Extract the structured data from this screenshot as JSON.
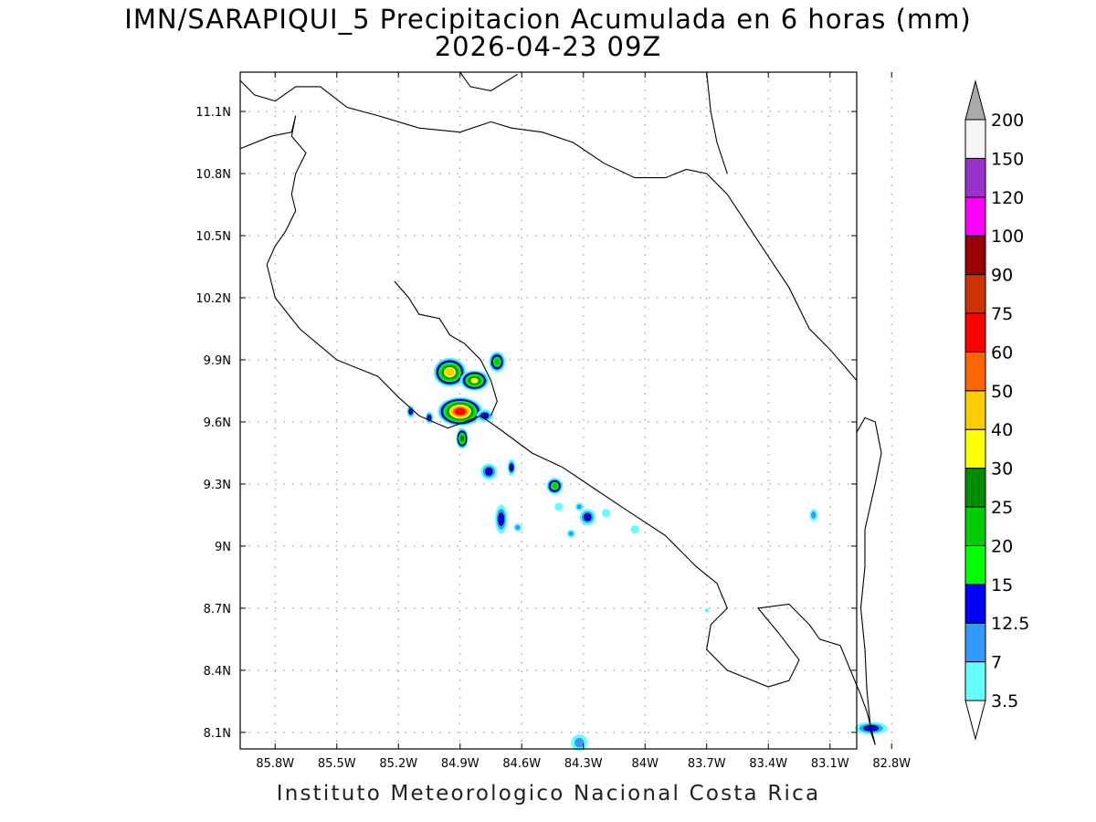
{
  "title": {
    "line1": "IMN/SARAPIQUI_5 Precipitacion Acumulada en 6 horas (mm)",
    "line2": "2026-04-23 09Z"
  },
  "footer": "Instituto Meteorologico Nacional Costa Rica",
  "axes": {
    "lon_ticks": [
      "85.8W",
      "85.5W",
      "85.2W",
      "84.9W",
      "84.6W",
      "84.3W",
      "84W",
      "83.7W",
      "83.4W",
      "83.1W",
      "82.8W"
    ],
    "lon_values": [
      -85.8,
      -85.5,
      -85.2,
      -84.9,
      -84.6,
      -84.3,
      -84.0,
      -83.7,
      -83.4,
      -83.1,
      -82.8
    ],
    "lat_ticks": [
      "11.1N",
      "10.8N",
      "10.5N",
      "10.2N",
      "9.9N",
      "9.6N",
      "9.3N",
      "9N",
      "8.7N",
      "8.4N",
      "8.1N"
    ],
    "lat_values": [
      11.1,
      10.8,
      10.5,
      10.2,
      9.9,
      9.6,
      9.3,
      9.0,
      8.7,
      8.4,
      8.1
    ],
    "lon_range": [
      -85.97,
      -82.97
    ],
    "lat_range": [
      8.02,
      11.29
    ],
    "grid": "dotted"
  },
  "colorbar": {
    "labels": [
      "3.5",
      "7",
      "12.5",
      "15",
      "20",
      "25",
      "30",
      "40",
      "50",
      "60",
      "75",
      "90",
      "100",
      "120",
      "150",
      "200"
    ],
    "colors": [
      "#66ffff",
      "#3399ff",
      "#0000ff",
      "#00ff00",
      "#00cc00",
      "#008c00",
      "#ffff00",
      "#ffcc00",
      "#ff6600",
      "#ff0000",
      "#cc3300",
      "#990000",
      "#ff00ff",
      "#9933cc",
      "#f5f5f5"
    ],
    "over_color": "#aaaaaa",
    "under_color": "#ffffff"
  },
  "precip_cells": [
    {
      "lon": -84.95,
      "lat": 9.84,
      "rx": 0.08,
      "ry": 0.07,
      "max": 42
    },
    {
      "lon": -84.83,
      "lat": 9.8,
      "rx": 0.07,
      "ry": 0.05,
      "max": 38
    },
    {
      "lon": -84.72,
      "lat": 9.89,
      "rx": 0.04,
      "ry": 0.05,
      "max": 24
    },
    {
      "lon": -84.9,
      "lat": 9.65,
      "rx": 0.11,
      "ry": 0.07,
      "max": 62
    },
    {
      "lon": -84.78,
      "lat": 9.63,
      "rx": 0.04,
      "ry": 0.03,
      "max": 14
    },
    {
      "lon": -84.89,
      "lat": 9.52,
      "rx": 0.03,
      "ry": 0.05,
      "max": 26
    },
    {
      "lon": -85.14,
      "lat": 9.65,
      "rx": 0.02,
      "ry": 0.03,
      "max": 13
    },
    {
      "lon": -85.05,
      "lat": 9.62,
      "rx": 0.02,
      "ry": 0.03,
      "max": 14
    },
    {
      "lon": -84.76,
      "lat": 9.36,
      "rx": 0.04,
      "ry": 0.04,
      "max": 13
    },
    {
      "lon": -84.65,
      "lat": 9.38,
      "rx": 0.02,
      "ry": 0.04,
      "max": 13
    },
    {
      "lon": -84.44,
      "lat": 9.29,
      "rx": 0.04,
      "ry": 0.04,
      "max": 23
    },
    {
      "lon": -84.7,
      "lat": 9.13,
      "rx": 0.03,
      "ry": 0.07,
      "max": 14
    },
    {
      "lon": -84.62,
      "lat": 9.09,
      "rx": 0.02,
      "ry": 0.02,
      "max": 11
    },
    {
      "lon": -84.32,
      "lat": 9.19,
      "rx": 0.02,
      "ry": 0.02,
      "max": 10
    },
    {
      "lon": -84.28,
      "lat": 9.14,
      "rx": 0.04,
      "ry": 0.04,
      "max": 14
    },
    {
      "lon": -84.36,
      "lat": 9.06,
      "rx": 0.02,
      "ry": 0.02,
      "max": 10
    },
    {
      "lon": -84.19,
      "lat": 9.16,
      "rx": 0.02,
      "ry": 0.02,
      "max": 5
    },
    {
      "lon": -84.05,
      "lat": 9.08,
      "rx": 0.02,
      "ry": 0.02,
      "max": 5
    },
    {
      "lon": -84.42,
      "lat": 9.19,
      "rx": 0.02,
      "ry": 0.02,
      "max": 5
    },
    {
      "lon": -83.18,
      "lat": 9.15,
      "rx": 0.02,
      "ry": 0.03,
      "max": 9
    },
    {
      "lon": -82.9,
      "lat": 8.12,
      "rx": 0.08,
      "ry": 0.03,
      "max": 14
    },
    {
      "lon": -84.32,
      "lat": 8.05,
      "rx": 0.04,
      "ry": 0.04,
      "max": 8
    },
    {
      "lon": -83.7,
      "lat": 8.69,
      "rx": 0.01,
      "ry": 0.01,
      "max": 5
    }
  ],
  "coastlines": {
    "pacific": [
      [
        -85.97,
        10.92
      ],
      [
        -85.82,
        10.98
      ],
      [
        -85.72,
        11.0
      ],
      [
        -85.7,
        11.08
      ],
      [
        -85.72,
        10.98
      ],
      [
        -85.65,
        10.9
      ],
      [
        -85.7,
        10.8
      ],
      [
        -85.72,
        10.7
      ],
      [
        -85.7,
        10.62
      ],
      [
        -85.75,
        10.52
      ],
      [
        -85.8,
        10.45
      ],
      [
        -85.84,
        10.36
      ],
      [
        -85.8,
        10.2
      ],
      [
        -85.68,
        10.05
      ],
      [
        -85.5,
        9.9
      ],
      [
        -85.3,
        9.82
      ],
      [
        -85.2,
        9.72
      ],
      [
        -85.1,
        9.63
      ],
      [
        -84.96,
        9.57
      ],
      [
        -84.88,
        9.6
      ],
      [
        -84.8,
        9.63
      ],
      [
        -84.7,
        9.56
      ],
      [
        -84.55,
        9.45
      ],
      [
        -84.4,
        9.38
      ],
      [
        -84.25,
        9.28
      ],
      [
        -84.1,
        9.18
      ],
      [
        -83.9,
        9.05
      ],
      [
        -83.75,
        8.9
      ],
      [
        -83.65,
        8.82
      ],
      [
        -83.6,
        8.7
      ],
      [
        -83.68,
        8.62
      ],
      [
        -83.7,
        8.5
      ],
      [
        -83.6,
        8.4
      ],
      [
        -83.4,
        8.32
      ],
      [
        -83.3,
        8.35
      ],
      [
        -83.25,
        8.45
      ],
      [
        -83.35,
        8.58
      ],
      [
        -83.45,
        8.7
      ],
      [
        -83.3,
        8.72
      ],
      [
        -83.2,
        8.62
      ],
      [
        -83.15,
        8.55
      ],
      [
        -83.05,
        8.52
      ],
      [
        -83.0,
        8.4
      ],
      [
        -82.95,
        8.28
      ],
      [
        -82.92,
        8.2
      ],
      [
        -82.9,
        8.12
      ],
      [
        -82.88,
        8.04
      ]
    ],
    "nicoya_gulf": [
      [
        -85.22,
        10.28
      ],
      [
        -85.15,
        10.2
      ],
      [
        -85.1,
        10.12
      ],
      [
        -85.0,
        10.1
      ],
      [
        -84.95,
        10.02
      ],
      [
        -84.88,
        9.98
      ],
      [
        -84.8,
        9.9
      ],
      [
        -84.75,
        9.8
      ],
      [
        -84.72,
        9.7
      ],
      [
        -84.75,
        9.63
      ]
    ],
    "caribbean": [
      [
        -85.97,
        11.25
      ],
      [
        -85.9,
        11.18
      ],
      [
        -85.8,
        11.15
      ],
      [
        -85.7,
        11.22
      ],
      [
        -85.58,
        11.22
      ],
      [
        -85.45,
        11.12
      ],
      [
        -85.3,
        11.08
      ],
      [
        -85.1,
        11.02
      ],
      [
        -84.9,
        11.0
      ],
      [
        -84.75,
        11.05
      ],
      [
        -84.65,
        11.02
      ],
      [
        -84.5,
        11.0
      ],
      [
        -84.35,
        10.95
      ],
      [
        -84.2,
        10.85
      ],
      [
        -84.05,
        10.78
      ],
      [
        -83.9,
        10.78
      ],
      [
        -83.8,
        10.82
      ],
      [
        -83.7,
        10.8
      ],
      [
        -83.6,
        10.7
      ],
      [
        -83.5,
        10.55
      ],
      [
        -83.4,
        10.4
      ],
      [
        -83.3,
        10.25
      ],
      [
        -83.2,
        10.05
      ],
      [
        -83.1,
        9.95
      ],
      [
        -82.97,
        9.8
      ]
    ],
    "nicaragua_lake": [
      [
        -84.9,
        11.29
      ],
      [
        -84.85,
        11.22
      ],
      [
        -84.75,
        11.2
      ],
      [
        -84.62,
        11.28
      ]
    ],
    "east_border": [
      [
        -83.7,
        11.29
      ],
      [
        -83.68,
        11.1
      ],
      [
        -83.65,
        10.95
      ],
      [
        -83.6,
        10.8
      ]
    ],
    "panama_border": [
      [
        -82.97,
        9.55
      ],
      [
        -82.93,
        9.62
      ],
      [
        -82.88,
        9.6
      ],
      [
        -82.85,
        9.45
      ],
      [
        -82.88,
        9.3
      ],
      [
        -82.93,
        9.08
      ],
      [
        -82.93,
        8.9
      ],
      [
        -82.95,
        8.7
      ],
      [
        -82.93,
        8.5
      ],
      [
        -82.92,
        8.3
      ],
      [
        -82.9,
        8.1
      ],
      [
        -82.88,
        8.04
      ]
    ]
  }
}
